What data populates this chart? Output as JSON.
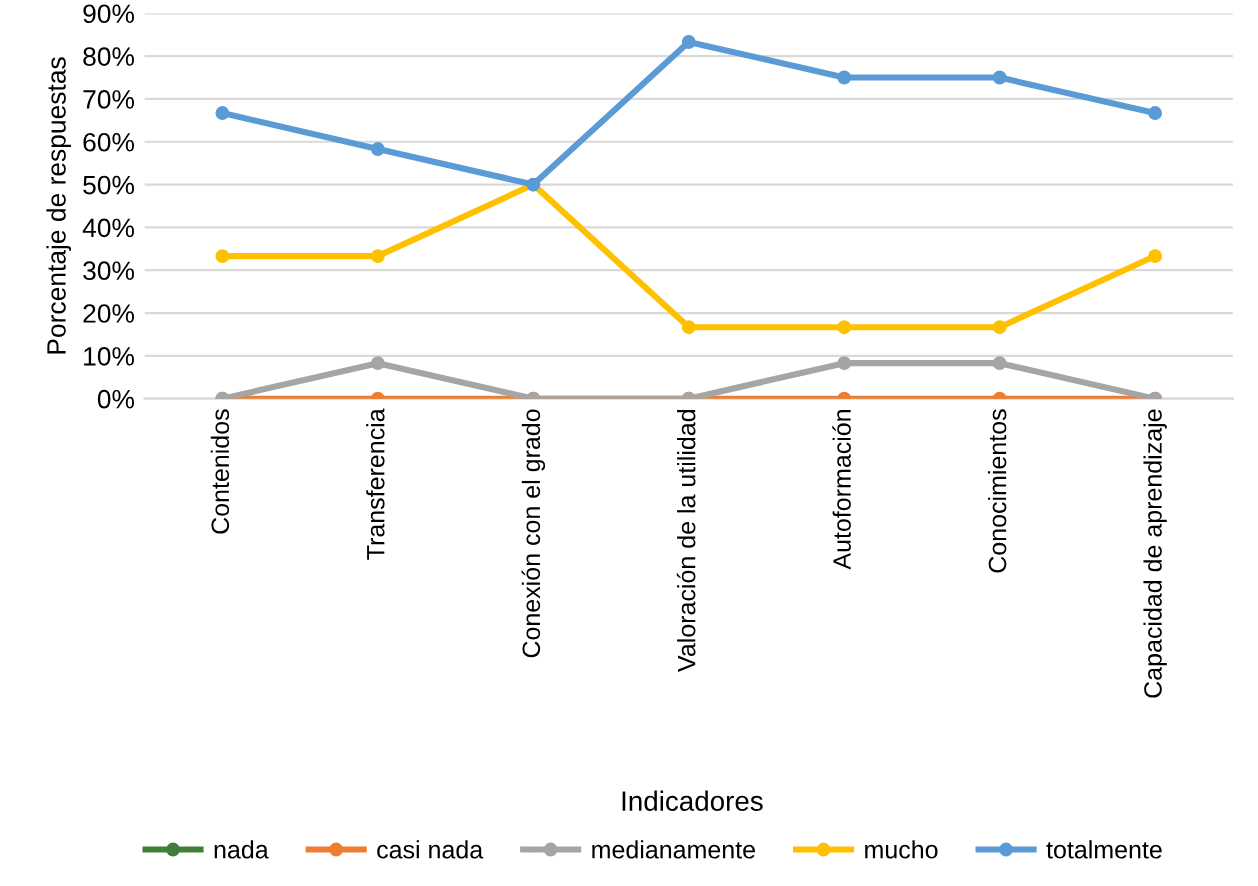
{
  "chart_data": {
    "type": "line",
    "xlabel": "Indicadores",
    "ylabel": "Porcentaje de respuestas",
    "categories": [
      "Contenidos",
      "Transferencia",
      "Conexión con el grado",
      "Valoración de la utilidad",
      "Autoformación",
      "Conocimientos",
      "Capacidad de aprendizaje"
    ],
    "series": [
      {
        "name": "nada",
        "color": "#3f7f3a",
        "values": [
          null,
          null,
          null,
          null,
          null,
          null,
          null
        ]
      },
      {
        "name": "casi nada",
        "color": "#ed7d31",
        "values": [
          0,
          0,
          0,
          0,
          0,
          0,
          0
        ]
      },
      {
        "name": "medianamente",
        "color": "#a5a5a5",
        "values": [
          0,
          8.3,
          0,
          0,
          8.3,
          8.3,
          0
        ]
      },
      {
        "name": "mucho",
        "color": "#ffc000",
        "values": [
          33.3,
          33.3,
          50,
          16.7,
          16.7,
          16.7,
          33.3
        ]
      },
      {
        "name": "totalmente",
        "color": "#5b9bd5",
        "values": [
          66.7,
          58.3,
          50,
          83.3,
          75,
          75,
          66.7
        ]
      }
    ],
    "ylim": [
      0,
      90
    ],
    "yticks": [
      {
        "value": 0,
        "label": "0%"
      },
      {
        "value": 10,
        "label": "10%"
      },
      {
        "value": 20,
        "label": "20%"
      },
      {
        "value": 30,
        "label": "30%"
      },
      {
        "value": 40,
        "label": "40%"
      },
      {
        "value": 50,
        "label": "50%"
      },
      {
        "value": 60,
        "label": "60%"
      },
      {
        "value": 70,
        "label": "70%"
      },
      {
        "value": 80,
        "label": "80%"
      },
      {
        "value": 90,
        "label": "90%"
      }
    ],
    "grid": "y",
    "legend": "bottom",
    "marker": "circle",
    "line_style": "solid"
  }
}
